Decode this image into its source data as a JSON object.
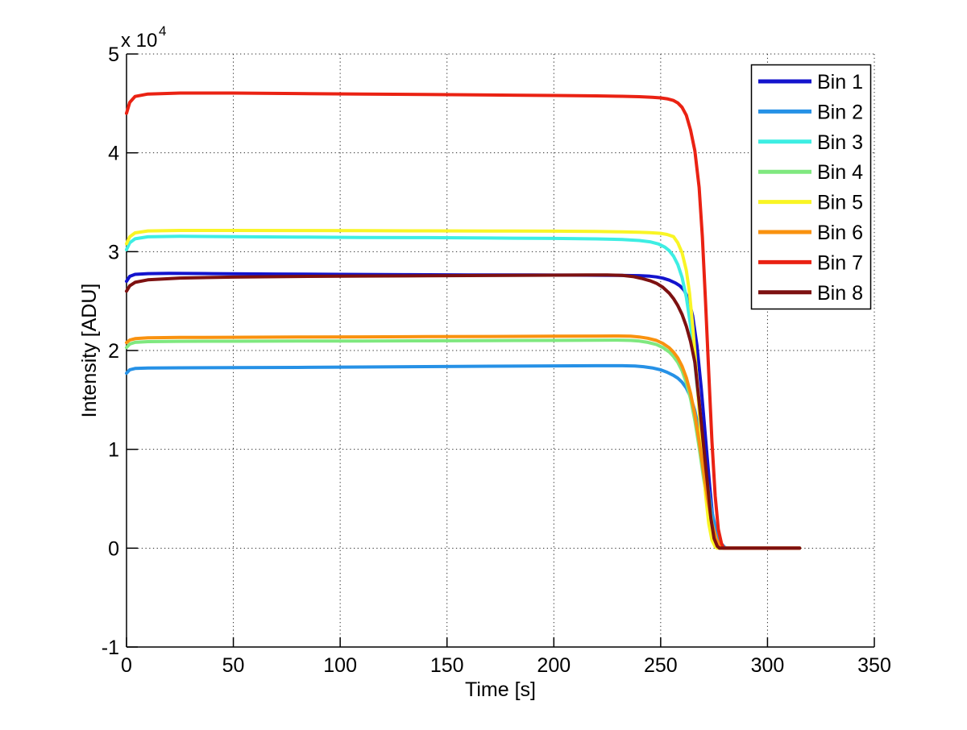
{
  "figure": {
    "background": "#ffffff",
    "exponent_base": "x 10",
    "exponent_power": "4"
  },
  "chart_data": {
    "type": "line",
    "title": "",
    "xlabel": "Time [s]",
    "ylabel": "Intensity [ADU]",
    "xlim": [
      0,
      350
    ],
    "ylim": [
      -10000,
      50000
    ],
    "xticks": [
      0,
      50,
      100,
      150,
      200,
      250,
      300,
      350
    ],
    "xtick_labels": [
      "0",
      "50",
      "100",
      "150",
      "200",
      "250",
      "300",
      "350"
    ],
    "yticks": [
      -10000,
      0,
      10000,
      20000,
      30000,
      40000,
      50000
    ],
    "ytick_labels": [
      "-1",
      "0",
      "1",
      "2",
      "3",
      "4",
      "5"
    ],
    "y_multiplier": 10000,
    "grid": true,
    "grid_style": "dotted",
    "legend_position": "northeast",
    "legend_entries": [
      "Bin 1",
      "Bin 2",
      "Bin 3",
      "Bin 4",
      "Bin 5",
      "Bin 6",
      "Bin 7",
      "Bin 8"
    ],
    "series": [
      {
        "name": "Bin 1",
        "color": "#1313cd",
        "points": [
          [
            0,
            27000
          ],
          [
            1.5,
            27500
          ],
          [
            4,
            27700
          ],
          [
            10,
            27780
          ],
          [
            20,
            27800
          ],
          [
            40,
            27780
          ],
          [
            70,
            27740
          ],
          [
            100,
            27700
          ],
          [
            130,
            27670
          ],
          [
            160,
            27650
          ],
          [
            190,
            27640
          ],
          [
            215,
            27620
          ],
          [
            230,
            27600
          ],
          [
            240,
            27570
          ],
          [
            245,
            27520
          ],
          [
            248,
            27440
          ],
          [
            251,
            27320
          ],
          [
            254,
            27120
          ],
          [
            257,
            26820
          ],
          [
            259,
            26550
          ],
          [
            261,
            26100
          ],
          [
            263,
            25200
          ],
          [
            265,
            23500
          ],
          [
            267,
            20500
          ],
          [
            269,
            16200
          ],
          [
            271,
            11200
          ],
          [
            273,
            6200
          ],
          [
            274.5,
            2800
          ],
          [
            276,
            700
          ],
          [
            277.5,
            0
          ],
          [
            315,
            0
          ]
        ]
      },
      {
        "name": "Bin 2",
        "color": "#2691e6",
        "points": [
          [
            0,
            17700
          ],
          [
            1.5,
            18050
          ],
          [
            4,
            18180
          ],
          [
            10,
            18230
          ],
          [
            25,
            18250
          ],
          [
            50,
            18260
          ],
          [
            80,
            18290
          ],
          [
            110,
            18330
          ],
          [
            140,
            18370
          ],
          [
            170,
            18410
          ],
          [
            200,
            18440
          ],
          [
            220,
            18460
          ],
          [
            232,
            18460
          ],
          [
            238,
            18430
          ],
          [
            242,
            18360
          ],
          [
            246,
            18240
          ],
          [
            250,
            18040
          ],
          [
            253,
            17800
          ],
          [
            256,
            17480
          ],
          [
            258,
            17200
          ],
          [
            260,
            16800
          ],
          [
            262,
            16200
          ],
          [
            264,
            15300
          ],
          [
            266,
            13900
          ],
          [
            268,
            11900
          ],
          [
            270,
            9300
          ],
          [
            272,
            6400
          ],
          [
            274,
            3700
          ],
          [
            276,
            1700
          ],
          [
            278,
            550
          ],
          [
            280,
            80
          ],
          [
            281.5,
            0
          ],
          [
            315,
            0
          ]
        ]
      },
      {
        "name": "Bin 3",
        "color": "#3deee3",
        "points": [
          [
            0,
            30200
          ],
          [
            1.5,
            30900
          ],
          [
            4,
            31300
          ],
          [
            10,
            31500
          ],
          [
            25,
            31550
          ],
          [
            50,
            31520
          ],
          [
            80,
            31480
          ],
          [
            110,
            31440
          ],
          [
            140,
            31420
          ],
          [
            170,
            31380
          ],
          [
            200,
            31340
          ],
          [
            220,
            31290
          ],
          [
            232,
            31230
          ],
          [
            240,
            31130
          ],
          [
            245,
            31000
          ],
          [
            249,
            30780
          ],
          [
            252,
            30450
          ],
          [
            254,
            30100
          ],
          [
            256,
            29550
          ],
          [
            258,
            28700
          ],
          [
            260,
            27400
          ],
          [
            262,
            25400
          ],
          [
            264,
            22500
          ],
          [
            266,
            18700
          ],
          [
            268,
            14300
          ],
          [
            270,
            9800
          ],
          [
            272,
            5700
          ],
          [
            274,
            2600
          ],
          [
            276,
            800
          ],
          [
            277.5,
            100
          ],
          [
            278.5,
            0
          ],
          [
            315,
            0
          ]
        ]
      },
      {
        "name": "Bin 4",
        "color": "#7fe87f",
        "points": [
          [
            0,
            20300
          ],
          [
            1.5,
            20650
          ],
          [
            4,
            20820
          ],
          [
            10,
            20900
          ],
          [
            25,
            20930
          ],
          [
            50,
            20940
          ],
          [
            80,
            20950
          ],
          [
            110,
            20960
          ],
          [
            140,
            20980
          ],
          [
            170,
            21000
          ],
          [
            200,
            21020
          ],
          [
            220,
            21040
          ],
          [
            230,
            21050
          ],
          [
            236,
            21020
          ],
          [
            240,
            20950
          ],
          [
            244,
            20820
          ],
          [
            248,
            20600
          ],
          [
            251,
            20300
          ],
          [
            254,
            19850
          ],
          [
            256,
            19400
          ],
          [
            258,
            18800
          ],
          [
            260,
            17950
          ],
          [
            262,
            16750
          ],
          [
            264,
            15100
          ],
          [
            266,
            12900
          ],
          [
            268,
            10200
          ],
          [
            270,
            7200
          ],
          [
            272,
            4400
          ],
          [
            274,
            2100
          ],
          [
            276,
            700
          ],
          [
            277.5,
            150
          ],
          [
            278.5,
            0
          ],
          [
            315,
            0
          ]
        ]
      },
      {
        "name": "Bin 5",
        "color": "#f9f525",
        "points": [
          [
            0,
            30800
          ],
          [
            1.5,
            31500
          ],
          [
            4,
            31900
          ],
          [
            10,
            32100
          ],
          [
            25,
            32150
          ],
          [
            50,
            32150
          ],
          [
            80,
            32140
          ],
          [
            110,
            32120
          ],
          [
            140,
            32110
          ],
          [
            170,
            32090
          ],
          [
            200,
            32070
          ],
          [
            220,
            32040
          ],
          [
            232,
            32010
          ],
          [
            240,
            31970
          ],
          [
            245,
            31930
          ],
          [
            250,
            31850
          ],
          [
            253,
            31740
          ],
          [
            256,
            31520
          ],
          [
            258,
            30900
          ],
          [
            260,
            29900
          ],
          [
            262,
            28100
          ],
          [
            263.5,
            25800
          ],
          [
            265,
            22500
          ],
          [
            266.5,
            18500
          ],
          [
            268,
            14000
          ],
          [
            269.5,
            9500
          ],
          [
            271,
            5500
          ],
          [
            272.5,
            2500
          ],
          [
            274,
            800
          ],
          [
            275.5,
            150
          ],
          [
            276.5,
            0
          ],
          [
            315,
            0
          ]
        ]
      },
      {
        "name": "Bin 6",
        "color": "#f9920f",
        "points": [
          [
            0,
            20800
          ],
          [
            1.5,
            21050
          ],
          [
            4,
            21200
          ],
          [
            10,
            21280
          ],
          [
            25,
            21320
          ],
          [
            50,
            21340
          ],
          [
            80,
            21360
          ],
          [
            110,
            21380
          ],
          [
            140,
            21400
          ],
          [
            170,
            21420
          ],
          [
            200,
            21440
          ],
          [
            220,
            21460
          ],
          [
            230,
            21470
          ],
          [
            236,
            21440
          ],
          [
            240,
            21370
          ],
          [
            244,
            21240
          ],
          [
            248,
            21020
          ],
          [
            251,
            20720
          ],
          [
            254,
            20280
          ],
          [
            256,
            19840
          ],
          [
            258,
            19250
          ],
          [
            260,
            18420
          ],
          [
            262,
            17250
          ],
          [
            264,
            15650
          ],
          [
            266,
            13500
          ],
          [
            268,
            10800
          ],
          [
            270,
            7800
          ],
          [
            272,
            4900
          ],
          [
            274,
            2500
          ],
          [
            276,
            950
          ],
          [
            277.5,
            250
          ],
          [
            279,
            0
          ],
          [
            315,
            0
          ]
        ]
      },
      {
        "name": "Bin 7",
        "color": "#ea2213",
        "points": [
          [
            0,
            44000
          ],
          [
            1.5,
            45100
          ],
          [
            4,
            45700
          ],
          [
            10,
            45950
          ],
          [
            25,
            46050
          ],
          [
            50,
            46050
          ],
          [
            80,
            46000
          ],
          [
            110,
            45950
          ],
          [
            140,
            45900
          ],
          [
            170,
            45850
          ],
          [
            200,
            45800
          ],
          [
            220,
            45760
          ],
          [
            232,
            45720
          ],
          [
            240,
            45680
          ],
          [
            246,
            45620
          ],
          [
            250,
            45560
          ],
          [
            253,
            45470
          ],
          [
            256,
            45300
          ],
          [
            258,
            45050
          ],
          [
            260,
            44600
          ],
          [
            262,
            43800
          ],
          [
            264,
            42300
          ],
          [
            266,
            40200
          ],
          [
            268,
            36500
          ],
          [
            269.5,
            31500
          ],
          [
            271,
            25000
          ],
          [
            272.5,
            17800
          ],
          [
            274,
            10800
          ],
          [
            275.5,
            5300
          ],
          [
            277,
            1900
          ],
          [
            278.5,
            450
          ],
          [
            279.5,
            0
          ],
          [
            315,
            0
          ]
        ]
      },
      {
        "name": "Bin 8",
        "color": "#7d1111",
        "points": [
          [
            0,
            26000
          ],
          [
            1.5,
            26550
          ],
          [
            4,
            26900
          ],
          [
            10,
            27150
          ],
          [
            25,
            27330
          ],
          [
            50,
            27430
          ],
          [
            80,
            27490
          ],
          [
            110,
            27530
          ],
          [
            140,
            27560
          ],
          [
            170,
            27590
          ],
          [
            200,
            27620
          ],
          [
            215,
            27640
          ],
          [
            225,
            27650
          ],
          [
            232,
            27600
          ],
          [
            237,
            27480
          ],
          [
            241,
            27300
          ],
          [
            245,
            27060
          ],
          [
            248,
            26800
          ],
          [
            251,
            26400
          ],
          [
            254,
            25800
          ],
          [
            256,
            25250
          ],
          [
            258,
            24550
          ],
          [
            260,
            23650
          ],
          [
            262,
            22450
          ],
          [
            264,
            20900
          ],
          [
            266,
            18800
          ],
          [
            268,
            14800
          ],
          [
            270,
            10500
          ],
          [
            272,
            6300
          ],
          [
            273.5,
            3000
          ],
          [
            275,
            1000
          ],
          [
            276.5,
            200
          ],
          [
            277.5,
            0
          ],
          [
            315,
            0
          ]
        ]
      }
    ]
  }
}
